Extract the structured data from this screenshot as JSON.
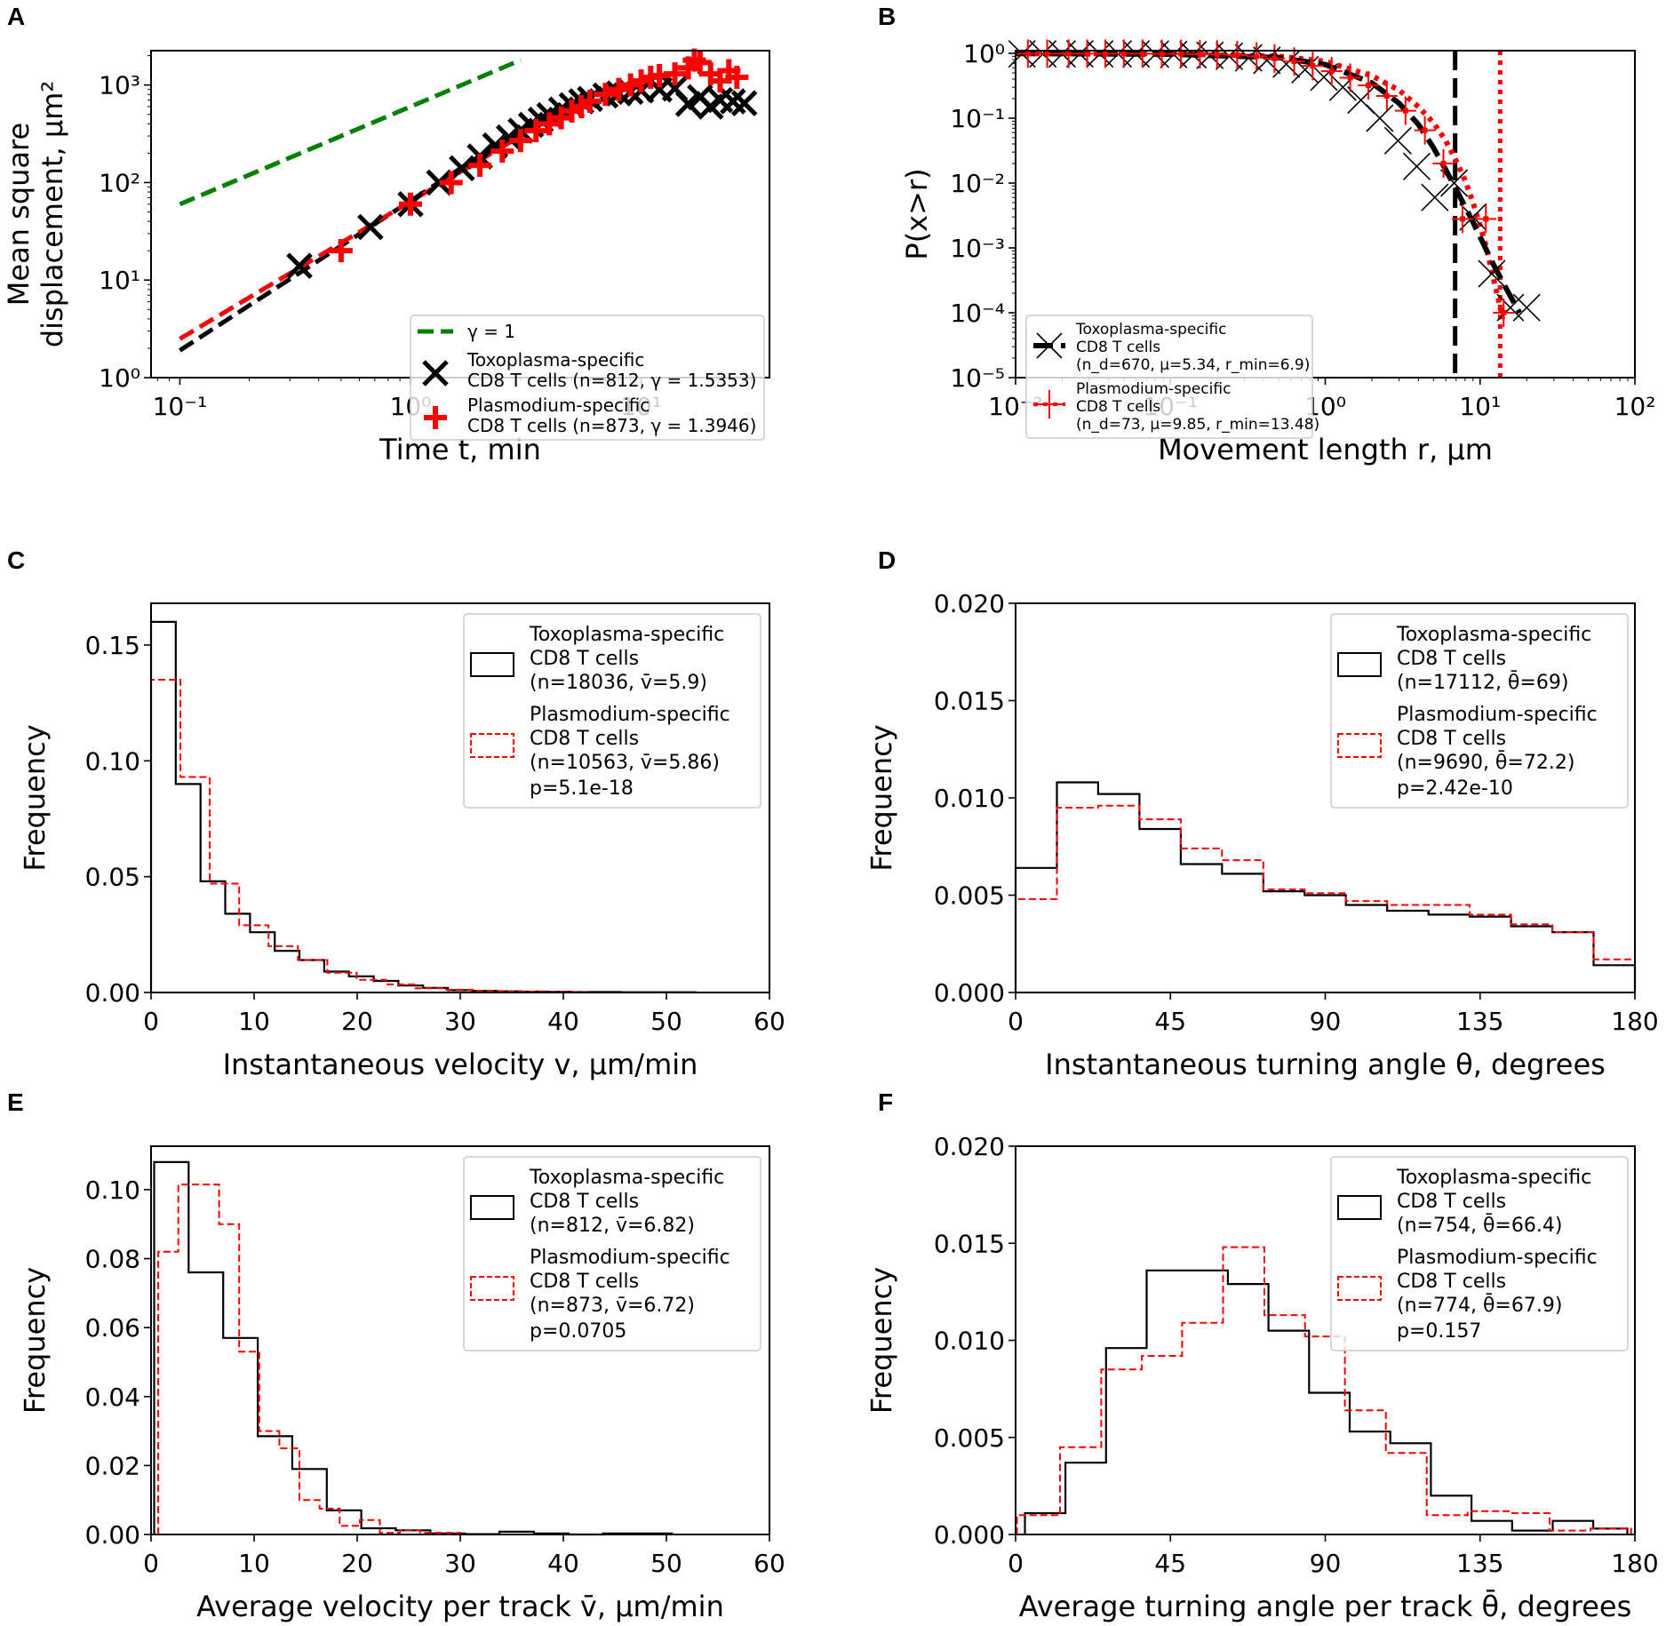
{
  "figure": {
    "colors": {
      "black": "#000000",
      "red": "#ff0000",
      "green": "#008000",
      "legend_border": "#cccccc"
    }
  },
  "chart_data": [
    {
      "panel": "A",
      "type": "scatter",
      "xscale": "log",
      "yscale": "log",
      "xlabel": "Time t, min",
      "ylabel_line1": "Mean square",
      "ylabel_line2": "displacement, μm²",
      "xticks": [
        {
          "value": 0.1,
          "label": "10⁻¹"
        },
        {
          "value": 1,
          "label": "10⁰"
        },
        {
          "value": 10,
          "label": "10¹"
        }
      ],
      "yticks": [
        {
          "value": 1,
          "label": "10⁰"
        },
        {
          "value": 10,
          "label": "10¹"
        },
        {
          "value": 100,
          "label": "10²"
        },
        {
          "value": 1000,
          "label": "10³"
        }
      ],
      "xlim": [
        0.075,
        36
      ],
      "ylim": [
        1,
        2250
      ],
      "legend_position": "lower-right",
      "reference_line": {
        "label": "γ = 1",
        "x": [
          0.1,
          3.0
        ],
        "y": [
          60,
          1800
        ]
      },
      "series": [
        {
          "name": "Toxoplasma-specific CD8 T cells (n=812, γ = 1.5353)",
          "legend_line1": "Toxoplasma-specific",
          "legend_line2": "CD8 T cells (n=812, γ = 1.5353)",
          "marker": "x",
          "fit": {
            "x": [
              0.1,
              3.0
            ],
            "y": [
              1.9,
              350
            ]
          },
          "x": [
            0.33,
            0.67,
            1.0,
            1.33,
            1.67,
            2.0,
            2.33,
            2.67,
            3.0,
            3.33,
            3.67,
            4.0,
            4.5,
            5.0,
            5.5,
            6.0,
            7.0,
            8.0,
            9.0,
            10.0,
            12.0,
            14.0,
            16.0,
            18.0,
            20.0,
            22.0,
            25.0,
            28.0
          ],
          "y": [
            14,
            35,
            60,
            100,
            140,
            185,
            240,
            290,
            340,
            390,
            440,
            490,
            560,
            620,
            680,
            720,
            780,
            820,
            850,
            880,
            900,
            920,
            640,
            750,
            600,
            700,
            680,
            650
          ]
        },
        {
          "name": "Plasmodium-specific CD8 T cells (n=873, γ = 1.3946)",
          "legend_line1": "Plasmodium-specific",
          "legend_line2": "CD8 T cells (n=873, γ = 1.3946)",
          "marker": "+",
          "fit": {
            "x": [
              0.1,
              3.0
            ],
            "y": [
              2.5,
              300
            ]
          },
          "x": [
            0.5,
            1.0,
            1.5,
            2.0,
            2.5,
            3.0,
            3.5,
            4.0,
            4.5,
            5.0,
            5.5,
            6.0,
            7.0,
            8.0,
            9.0,
            10.0,
            11.0,
            12.0,
            14.0,
            16.0,
            17.0,
            18.0,
            20.0,
            22.0,
            24.0,
            26.0
          ],
          "y": [
            20,
            60,
            100,
            150,
            210,
            270,
            340,
            400,
            460,
            540,
            600,
            680,
            800,
            900,
            1000,
            1100,
            1200,
            1250,
            1300,
            1500,
            1800,
            1700,
            1300,
            1100,
            1400,
            1200
          ]
        }
      ]
    },
    {
      "panel": "B",
      "type": "line",
      "xscale": "log",
      "yscale": "log",
      "xlabel": "Movement length r, μm",
      "ylabel": "P(x>r)",
      "xticks": [
        {
          "value": 0.01,
          "label": "10⁻²"
        },
        {
          "value": 0.1,
          "label": "10⁻¹"
        },
        {
          "value": 1,
          "label": "10⁰"
        },
        {
          "value": 10,
          "label": "10¹"
        },
        {
          "value": 100,
          "label": "10²"
        }
      ],
      "yticks": [
        {
          "value": 1e-05,
          "label": "10⁻⁵"
        },
        {
          "value": 0.0001,
          "label": "10⁻⁴"
        },
        {
          "value": 0.001,
          "label": "10⁻³"
        },
        {
          "value": 0.01,
          "label": "10⁻²"
        },
        {
          "value": 0.1,
          "label": "10⁻¹"
        },
        {
          "value": 1,
          "label": "10⁰"
        }
      ],
      "xlim": [
        0.01,
        100
      ],
      "ylim": [
        1e-05,
        1.1
      ],
      "legend_position": "lower-left",
      "series": [
        {
          "name": "Toxoplasma-specific CD8 T cells",
          "legend_line1": "Toxoplasma-specific",
          "legend_line2": "CD8 T cells",
          "legend_line3": "(n_d=670, μ=5.34, r_min=6.9)",
          "nd": 670,
          "mu": 5.34,
          "rmin": 6.9,
          "marker": "x",
          "line_style": "dashed",
          "x": [
            0.011,
            0.015,
            0.02,
            0.026,
            0.035,
            0.046,
            0.06,
            0.08,
            0.105,
            0.14,
            0.18,
            0.24,
            0.32,
            0.42,
            0.56,
            0.74,
            0.98,
            1.3,
            1.7,
            2.25,
            2.95,
            3.9,
            5.1,
            6.8,
            9.0,
            11.9,
            15.7,
            20.0
          ],
          "y": [
            0.98,
            0.98,
            0.98,
            0.98,
            0.98,
            0.98,
            0.98,
            0.97,
            0.96,
            0.95,
            0.93,
            0.9,
            0.85,
            0.78,
            0.68,
            0.56,
            0.43,
            0.3,
            0.19,
            0.1,
            0.045,
            0.018,
            0.006,
            0.01,
            0.003,
            0.0004,
            0.00012,
            0.00012
          ],
          "fit": {
            "x": [
              0.01,
              0.1,
              0.5,
              1.0,
              2.0,
              3.0,
              4.0,
              5.0,
              6.0,
              7.0,
              9.0,
              12.0,
              15.0,
              18.0
            ],
            "y": [
              0.99,
              0.97,
              0.86,
              0.67,
              0.35,
              0.17,
              0.08,
              0.035,
              0.016,
              0.008,
              0.0025,
              0.0006,
              0.00022,
              0.0001
            ]
          },
          "rmin_line": 6.9
        },
        {
          "name": "Plasmodium-specific CD8 T cells",
          "legend_line1": "Plasmodium-specific",
          "legend_line2": "CD8 T cells",
          "legend_line3": "(n_d=73, μ=9.85, r_min=13.48)",
          "nd": 73,
          "mu": 9.85,
          "rmin": 13.48,
          "marker": "+",
          "line_style": "dotted",
          "x": [
            0.012,
            0.016,
            0.022,
            0.029,
            0.038,
            0.05,
            0.066,
            0.088,
            0.117,
            0.155,
            0.2,
            0.27,
            0.36,
            0.47,
            0.63,
            0.83,
            1.1,
            1.45,
            1.9,
            2.5,
            3.3,
            4.4,
            5.8,
            7.7,
            10.9,
            14.2
          ],
          "y": [
            0.99,
            0.99,
            0.99,
            0.99,
            0.99,
            0.99,
            0.99,
            0.98,
            0.98,
            0.97,
            0.96,
            0.94,
            0.9,
            0.83,
            0.75,
            0.64,
            0.53,
            0.42,
            0.32,
            0.22,
            0.13,
            0.065,
            0.02,
            0.0028,
            0.0028,
            0.0001
          ],
          "fit": {
            "x": [
              0.01,
              0.1,
              0.5,
              1.0,
              2.0,
              3.0,
              4.0,
              5.0,
              6.0,
              7.0,
              8.0,
              9.0,
              10.0,
              11.0,
              12.0,
              13.0,
              14.0
            ],
            "y": [
              0.99,
              0.98,
              0.9,
              0.75,
              0.45,
              0.27,
              0.15,
              0.085,
              0.045,
              0.022,
              0.011,
              0.005,
              0.0022,
              0.001,
              0.0004,
              0.00018,
              8e-05
            ]
          },
          "rmin_line": 13.48
        }
      ]
    },
    {
      "panel": "C",
      "type": "histogram",
      "xlabel": "Instantaneous velocity v, μm/min",
      "ylabel": "Frequency",
      "xlim": [
        0,
        60
      ],
      "ylim": [
        0,
        0.168
      ],
      "xticks": [
        0,
        10,
        20,
        30,
        40,
        50,
        60
      ],
      "xtick_labels": [
        "0",
        "10",
        "20",
        "30",
        "40",
        "50",
        "60"
      ],
      "yticks": [
        0,
        0.05,
        0.1,
        0.15
      ],
      "ytick_labels": [
        "0.00",
        "0.05",
        "0.10",
        "0.15"
      ],
      "legend_position": "upper-right",
      "p_value": "p=5.1e-18",
      "series": [
        {
          "name": "Toxoplasma-specific CD8 T cells",
          "legend_line1": "Toxoplasma-specific",
          "legend_line2": "CD8 T cells",
          "legend_line3": "(n=18036, v̄=5.9)",
          "style": "solid",
          "bin_edges": [
            0,
            2.4,
            4.8,
            7.2,
            9.6,
            12.0,
            14.4,
            16.8,
            19.2,
            21.6,
            24.0,
            26.4,
            28.8,
            31.2,
            33.6,
            36.0,
            38.4,
            40.8,
            43.2,
            45.6,
            48.0,
            50.4,
            52.8
          ],
          "values": [
            0.16,
            0.09,
            0.048,
            0.034,
            0.026,
            0.018,
            0.014,
            0.009,
            0.007,
            0.005,
            0.003,
            0.002,
            0.001,
            0.0007,
            0.0005,
            0.0004,
            0.0003,
            0.0002,
            0.0002,
            0.0001,
            0.0001,
            0.0001
          ]
        },
        {
          "name": "Plasmodium-specific CD8 T cells",
          "legend_line1": "Plasmodium-specific",
          "legend_line2": "CD8 T cells",
          "legend_line3": "(n=10563, v̄=5.86)",
          "style": "dashed",
          "bin_edges": [
            0,
            2.85,
            5.7,
            8.55,
            11.4,
            14.25,
            17.1,
            19.95,
            22.8,
            25.65,
            28.5,
            31.35,
            34.2,
            37.05,
            39.9,
            42.75
          ],
          "values": [
            0.135,
            0.093,
            0.047,
            0.029,
            0.02,
            0.014,
            0.0085,
            0.0055,
            0.0035,
            0.0018,
            0.0012,
            0.0006,
            0.0004,
            0.0003,
            0.0002
          ]
        }
      ]
    },
    {
      "panel": "D",
      "type": "histogram",
      "xlabel": "Instantaneous turning angle θ, degrees",
      "ylabel": "Frequency",
      "xlim": [
        0,
        180
      ],
      "ylim": [
        0,
        0.02
      ],
      "xticks": [
        0,
        45,
        90,
        135,
        180
      ],
      "xtick_labels": [
        "0",
        "45",
        "90",
        "135",
        "180"
      ],
      "yticks": [
        0,
        0.005,
        0.01,
        0.015,
        0.02
      ],
      "ytick_labels": [
        "0.000",
        "0.005",
        "0.010",
        "0.015",
        "0.020"
      ],
      "legend_position": "upper-right",
      "p_value": "p=2.42e-10",
      "series": [
        {
          "name": "Toxoplasma-specific CD8 T cells",
          "legend_line1": "Toxoplasma-specific",
          "legend_line2": "CD8 T cells",
          "legend_line3": "(n=17112, θ̄=69)",
          "style": "solid",
          "bin_edges": [
            0,
            12,
            24,
            36,
            48,
            60,
            72,
            84,
            96,
            108,
            120,
            132,
            144,
            156,
            168,
            180
          ],
          "values": [
            0.0064,
            0.0108,
            0.0102,
            0.0084,
            0.0066,
            0.0061,
            0.0052,
            0.005,
            0.0045,
            0.0042,
            0.004,
            0.0039,
            0.0034,
            0.0031,
            0.0014
          ]
        },
        {
          "name": "Plasmodium-specific CD8 T cells",
          "legend_line1": "Plasmodium-specific",
          "legend_line2": "CD8 T cells",
          "legend_line3": "(n=9690, θ̄=72.2)",
          "style": "dashed",
          "bin_edges": [
            0,
            12,
            24,
            36,
            48,
            60,
            72,
            84,
            96,
            108,
            120,
            132,
            144,
            156,
            168,
            180
          ],
          "values": [
            0.0048,
            0.0095,
            0.0096,
            0.0089,
            0.0074,
            0.0068,
            0.0053,
            0.0051,
            0.0047,
            0.0045,
            0.0045,
            0.004,
            0.0035,
            0.0031,
            0.0017
          ]
        }
      ]
    },
    {
      "panel": "E",
      "type": "histogram",
      "xlabel": "Average velocity per track v̄, μm/min",
      "ylabel": "Frequency",
      "xlim": [
        0,
        60
      ],
      "ylim": [
        0,
        0.1126
      ],
      "xticks": [
        0,
        10,
        20,
        30,
        40,
        50,
        60
      ],
      "xtick_labels": [
        "0",
        "10",
        "20",
        "30",
        "40",
        "50",
        "60"
      ],
      "yticks": [
        0,
        0.02,
        0.04,
        0.06,
        0.08,
        0.1
      ],
      "ytick_labels": [
        "0.00",
        "0.02",
        "0.04",
        "0.06",
        "0.08",
        "0.10"
      ],
      "legend_position": "upper-right",
      "p_value": "p=0.0705",
      "series": [
        {
          "name": "Toxoplasma-specific CD8 T cells",
          "legend_line1": "Toxoplasma-specific",
          "legend_line2": "CD8 T cells",
          "legend_line3": "(n=812, v̄=6.82)",
          "style": "solid",
          "bin_edges": [
            0.3,
            3.65,
            7.0,
            10.35,
            13.7,
            17.05,
            20.4,
            23.75,
            27.1,
            30.45,
            33.8,
            37.15,
            40.5,
            43.85,
            47.2,
            50.55
          ],
          "values": [
            0.108,
            0.076,
            0.057,
            0.0285,
            0.019,
            0.007,
            0.0018,
            0.0012,
            0.0003,
            0.0001,
            0.0008,
            0.0003,
            0.0,
            0.0003,
            0.0003
          ]
        },
        {
          "name": "Plasmodium-specific CD8 T cells",
          "legend_line1": "Plasmodium-specific",
          "legend_line2": "CD8 T cells",
          "legend_line3": "(n=873, v̄=6.72)",
          "style": "dashed",
          "bin_edges": [
            0.7,
            2.65,
            6.6,
            8.55,
            10.5,
            12.45,
            14.4,
            16.35,
            18.3,
            20.25,
            22.2,
            24.15,
            26.1,
            28.05,
            30.0
          ],
          "values": [
            0.082,
            0.1015,
            0.09,
            0.053,
            0.03,
            0.025,
            0.01,
            0.0075,
            0.0025,
            0.0042,
            0.0005,
            0.0012,
            0.0005,
            0.0005
          ]
        }
      ]
    },
    {
      "panel": "F",
      "type": "histogram",
      "xlabel": "Average turning angle per track θ̄, degrees",
      "ylabel": "Frequency",
      "xlim": [
        0,
        180
      ],
      "ylim": [
        0,
        0.02
      ],
      "xticks": [
        0,
        45,
        90,
        135,
        180
      ],
      "xtick_labels": [
        "0",
        "45",
        "90",
        "135",
        "180"
      ],
      "yticks": [
        0,
        0.005,
        0.01,
        0.015,
        0.02
      ],
      "ytick_labels": [
        "0.000",
        "0.005",
        "0.010",
        "0.015",
        "0.020"
      ],
      "legend_position": "upper-right",
      "p_value": "p=0.157",
      "series": [
        {
          "name": "Toxoplasma-specific CD8 T cells",
          "legend_line1": "Toxoplasma-specific",
          "legend_line2": "CD8 T cells",
          "legend_line3": "(n=754, θ̄=66.4)",
          "style": "solid",
          "bin_edges": [
            2.7,
            14.5,
            26.3,
            38.1,
            49.9,
            61.7,
            73.5,
            85.3,
            97.1,
            108.9,
            120.7,
            132.5,
            144.3,
            156.1,
            167.9,
            177.8
          ],
          "values": [
            0.0011,
            0.0037,
            0.0096,
            0.0136,
            0.0136,
            0.0129,
            0.0105,
            0.0073,
            0.0053,
            0.0047,
            0.002,
            0.0007,
            0.0002,
            0.0007,
            0.0003
          ]
        },
        {
          "name": "Plasmodium-specific CD8 T cells",
          "legend_line1": "Plasmodium-specific",
          "legend_line2": "CD8 T cells",
          "legend_line3": "(n=774, θ̄=67.9)",
          "style": "dashed",
          "bin_edges": [
            0.4,
            12.9,
            24.9,
            36.7,
            48.4,
            60.3,
            72.3,
            84.1,
            95.7,
            107.6,
            119.5,
            131.4,
            143.3,
            155.2,
            167.1,
            178.9
          ],
          "values": [
            0.001,
            0.0045,
            0.0085,
            0.0092,
            0.0109,
            0.0148,
            0.0113,
            0.0102,
            0.0064,
            0.0042,
            0.001,
            0.0012,
            0.0011,
            0.0002,
            0.0003
          ]
        }
      ]
    }
  ],
  "panels": {
    "letters": [
      "A",
      "B",
      "C",
      "D",
      "E",
      "F"
    ]
  }
}
